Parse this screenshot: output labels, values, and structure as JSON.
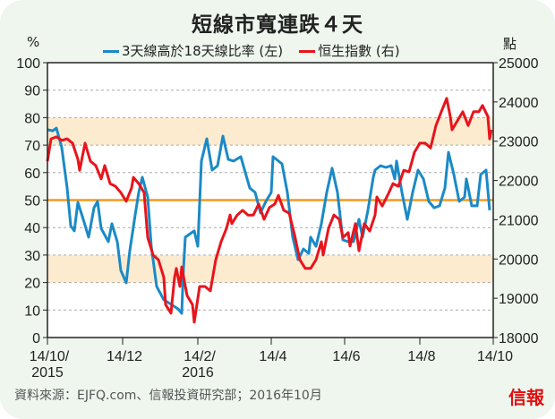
{
  "chart_data": {
    "type": "line",
    "title": "短線市寬連跌４天",
    "left_axis": {
      "unit": "%",
      "ylim": [
        0,
        100
      ],
      "ticks": [
        0,
        10,
        20,
        30,
        40,
        50,
        60,
        70,
        80,
        90,
        100
      ]
    },
    "right_axis": {
      "unit": "點",
      "ylim": [
        18000,
        25000
      ],
      "ticks": [
        18000,
        19000,
        20000,
        21000,
        22000,
        23000,
        24000,
        25000
      ]
    },
    "x_axis": {
      "xlim": [
        0,
        249
      ],
      "ticks": [
        {
          "x": 0,
          "label": "14/10/",
          "label2": "2015"
        },
        {
          "x": 42,
          "label": "14/12",
          "label2": ""
        },
        {
          "x": 84,
          "label": "14/2/",
          "label2": "2016"
        },
        {
          "x": 125,
          "label": "14/4",
          "label2": ""
        },
        {
          "x": 166,
          "label": "14/6",
          "label2": ""
        },
        {
          "x": 208,
          "label": "14/8",
          "label2": ""
        },
        {
          "x": 249,
          "label": "14/10",
          "label2": ""
        }
      ]
    },
    "bands": [
      [
        70,
        80
      ],
      [
        20,
        30
      ]
    ],
    "reference_line": 50,
    "grid": true,
    "legend_position": "top",
    "series": [
      {
        "name": "3天線高於18天線比率 (左)",
        "axis": "left",
        "color": "#1a8ac6",
        "points": [
          [
            0,
            75.6
          ],
          [
            3,
            75.2
          ],
          [
            5,
            76.2
          ],
          [
            8,
            69.1
          ],
          [
            11,
            54.4
          ],
          [
            13,
            40.7
          ],
          [
            15,
            38.8
          ],
          [
            17,
            49.2
          ],
          [
            20,
            43.0
          ],
          [
            23,
            36.5
          ],
          [
            26,
            47.2
          ],
          [
            28,
            49.5
          ],
          [
            30,
            39.7
          ],
          [
            34,
            34.9
          ],
          [
            36,
            41.4
          ],
          [
            39,
            34.9
          ],
          [
            41,
            24.4
          ],
          [
            44,
            19.9
          ],
          [
            46,
            31.6
          ],
          [
            49,
            44.6
          ],
          [
            51,
            52.8
          ],
          [
            53,
            58.3
          ],
          [
            56,
            51.1
          ],
          [
            58,
            33.2
          ],
          [
            61,
            18.6
          ],
          [
            65,
            13.7
          ],
          [
            69,
            12.1
          ],
          [
            73,
            10.4
          ],
          [
            75,
            8.8
          ],
          [
            76,
            25.1
          ],
          [
            77,
            36.5
          ],
          [
            82,
            38.8
          ],
          [
            84,
            33.2
          ],
          [
            86,
            64.2
          ],
          [
            89,
            72.3
          ],
          [
            92,
            60.9
          ],
          [
            95,
            62.5
          ],
          [
            98,
            73.3
          ],
          [
            101,
            64.8
          ],
          [
            104,
            64.2
          ],
          [
            108,
            65.8
          ],
          [
            113,
            54.4
          ],
          [
            116,
            52.8
          ],
          [
            119,
            45.3
          ],
          [
            122,
            49.5
          ],
          [
            125,
            52.8
          ],
          [
            126,
            65.8
          ],
          [
            131,
            63.2
          ],
          [
            134,
            52.8
          ],
          [
            137,
            36.5
          ],
          [
            140,
            28.3
          ],
          [
            143,
            32.2
          ],
          [
            146,
            30.6
          ],
          [
            147,
            36.5
          ],
          [
            150,
            33.2
          ],
          [
            153,
            41.4
          ],
          [
            156,
            52.8
          ],
          [
            159,
            61.6
          ],
          [
            162,
            52.8
          ],
          [
            165,
            35.5
          ],
          [
            168,
            34.9
          ],
          [
            171,
            34.9
          ],
          [
            174,
            43.0
          ],
          [
            176,
            36.5
          ],
          [
            179,
            46.3
          ],
          [
            182,
            58.3
          ],
          [
            183,
            60.9
          ],
          [
            186,
            62.5
          ],
          [
            189,
            61.9
          ],
          [
            192,
            62.5
          ],
          [
            194,
            57.7
          ],
          [
            195,
            64.2
          ],
          [
            198,
            52.8
          ],
          [
            201,
            43.0
          ],
          [
            204,
            52.8
          ],
          [
            207,
            60.9
          ],
          [
            210,
            57.7
          ],
          [
            213,
            49.5
          ],
          [
            216,
            47.2
          ],
          [
            219,
            47.9
          ],
          [
            222,
            54.4
          ],
          [
            224,
            67.4
          ],
          [
            227,
            59.3
          ],
          [
            230,
            49.5
          ],
          [
            233,
            51.1
          ],
          [
            234,
            57.7
          ],
          [
            237,
            47.9
          ],
          [
            240,
            47.9
          ],
          [
            242,
            59.3
          ],
          [
            245,
            60.9
          ],
          [
            247,
            46.3
          ]
        ]
      },
      {
        "name": "恒生指數 (右)",
        "axis": "right",
        "color": "#e8141c",
        "points": [
          [
            0,
            22490
          ],
          [
            2,
            23060
          ],
          [
            5,
            23110
          ],
          [
            8,
            23020
          ],
          [
            11,
            23060
          ],
          [
            14,
            22950
          ],
          [
            17,
            22540
          ],
          [
            18,
            22260
          ],
          [
            21,
            22950
          ],
          [
            24,
            22490
          ],
          [
            27,
            22380
          ],
          [
            30,
            22040
          ],
          [
            32,
            22380
          ],
          [
            35,
            21920
          ],
          [
            38,
            21850
          ],
          [
            41,
            21690
          ],
          [
            44,
            21470
          ],
          [
            47,
            21810
          ],
          [
            48,
            22080
          ],
          [
            51,
            21920
          ],
          [
            54,
            21690
          ],
          [
            56,
            20550
          ],
          [
            59,
            20100
          ],
          [
            62,
            19980
          ],
          [
            65,
            19530
          ],
          [
            66,
            18840
          ],
          [
            69,
            18620
          ],
          [
            71,
            19530
          ],
          [
            72,
            19760
          ],
          [
            74,
            19300
          ],
          [
            75,
            19800
          ],
          [
            78,
            19070
          ],
          [
            81,
            18840
          ],
          [
            82,
            18390
          ],
          [
            85,
            19300
          ],
          [
            88,
            19300
          ],
          [
            91,
            19190
          ],
          [
            94,
            19980
          ],
          [
            97,
            20440
          ],
          [
            100,
            20780
          ],
          [
            102,
            21120
          ],
          [
            103,
            20900
          ],
          [
            106,
            21120
          ],
          [
            109,
            21240
          ],
          [
            112,
            21120
          ],
          [
            115,
            21120
          ],
          [
            118,
            21400
          ],
          [
            121,
            21010
          ],
          [
            124,
            21310
          ],
          [
            127,
            21400
          ],
          [
            129,
            21620
          ],
          [
            132,
            21240
          ],
          [
            135,
            21170
          ],
          [
            138,
            20620
          ],
          [
            141,
            19980
          ],
          [
            144,
            19760
          ],
          [
            147,
            19760
          ],
          [
            150,
            19980
          ],
          [
            153,
            20440
          ],
          [
            154,
            20100
          ],
          [
            157,
            20780
          ],
          [
            160,
            21120
          ],
          [
            163,
            21010
          ],
          [
            165,
            20550
          ],
          [
            168,
            20670
          ],
          [
            169,
            20330
          ],
          [
            172,
            20900
          ],
          [
            174,
            20210
          ],
          [
            177,
            20900
          ],
          [
            180,
            20710
          ],
          [
            183,
            21120
          ],
          [
            184,
            21580
          ],
          [
            187,
            21350
          ],
          [
            190,
            21620
          ],
          [
            193,
            21920
          ],
          [
            196,
            21850
          ],
          [
            199,
            22260
          ],
          [
            202,
            22220
          ],
          [
            205,
            22720
          ],
          [
            208,
            22950
          ],
          [
            211,
            22950
          ],
          [
            214,
            22830
          ],
          [
            217,
            23400
          ],
          [
            220,
            23750
          ],
          [
            223,
            24090
          ],
          [
            225,
            23630
          ],
          [
            226,
            23290
          ],
          [
            229,
            23520
          ],
          [
            232,
            23750
          ],
          [
            235,
            23400
          ],
          [
            238,
            23750
          ],
          [
            241,
            23750
          ],
          [
            243,
            23910
          ],
          [
            246,
            23630
          ],
          [
            247,
            23060
          ],
          [
            248,
            23290
          ]
        ]
      }
    ],
    "colors": {
      "band": "#fdebd0",
      "reference": "#f39a1e"
    }
  },
  "footer": {
    "source": "資料來源：EJFQ.com、信報投資研究部；2016年10月",
    "logo": "信報"
  }
}
